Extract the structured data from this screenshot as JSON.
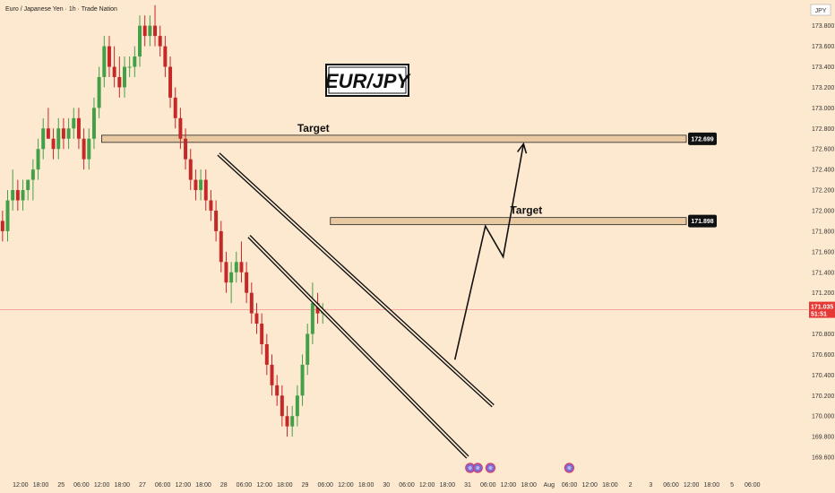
{
  "header": {
    "symbol_line": "Euro / Japanese Yen · 1h · Trade Nation",
    "currency": "JPY"
  },
  "title_box": {
    "text": "EUR/JPY"
  },
  "colors": {
    "background": "#fde9cf",
    "bull": "#43a047",
    "bear": "#c62828",
    "zone_fill": "#e9c9a2",
    "line": "#111111",
    "price_tag": "#e53935",
    "last_price_line": "#f08f8f"
  },
  "chart_data": {
    "type": "candlestick",
    "ylim": [
      169.4,
      174.05
    ],
    "xlim": [
      0,
      159
    ],
    "y_ticks": [
      169.6,
      169.8,
      170.0,
      170.2,
      170.4,
      170.6,
      170.8,
      171.0,
      171.2,
      171.4,
      171.6,
      171.8,
      172.0,
      172.2,
      172.4,
      172.6,
      172.8,
      173.0,
      173.2,
      173.4,
      173.6,
      173.8
    ],
    "y_tick_labels": [
      "169.600",
      "169.800",
      "170.000",
      "170.200",
      "170.400",
      "170.600",
      "170.800",
      "171.000",
      "171.200",
      "171.400",
      "171.600",
      "171.800",
      "172.000",
      "172.200",
      "172.400",
      "172.600",
      "172.800",
      "173.000",
      "173.200",
      "173.400",
      "173.600",
      "173.800"
    ],
    "x_ticks": [
      {
        "x": 0,
        "label": "12:00"
      },
      {
        "x": 4,
        "label": "18:00"
      },
      {
        "x": 8,
        "label": "25"
      },
      {
        "x": 12,
        "label": "06:00"
      },
      {
        "x": 16,
        "label": "12:00"
      },
      {
        "x": 20,
        "label": "18:00"
      },
      {
        "x": 24,
        "label": "27"
      },
      {
        "x": 28,
        "label": "06:00"
      },
      {
        "x": 32,
        "label": "12:00"
      },
      {
        "x": 36,
        "label": "18:00"
      },
      {
        "x": 40,
        "label": "28"
      },
      {
        "x": 44,
        "label": "06:00"
      },
      {
        "x": 48,
        "label": "12:00"
      },
      {
        "x": 52,
        "label": "18:00"
      },
      {
        "x": 56,
        "label": "29"
      },
      {
        "x": 60,
        "label": "06:00"
      },
      {
        "x": 64,
        "label": "12:00"
      },
      {
        "x": 68,
        "label": "18:00"
      },
      {
        "x": 72,
        "label": "30"
      },
      {
        "x": 76,
        "label": "06:00"
      },
      {
        "x": 80,
        "label": "12:00"
      },
      {
        "x": 84,
        "label": "18:00"
      },
      {
        "x": 88,
        "label": "31"
      },
      {
        "x": 92,
        "label": "06:00"
      },
      {
        "x": 96,
        "label": "12:00"
      },
      {
        "x": 100,
        "label": "18:00"
      },
      {
        "x": 104,
        "label": "Aug"
      },
      {
        "x": 108,
        "label": "06:00"
      },
      {
        "x": 112,
        "label": "12:00"
      },
      {
        "x": 116,
        "label": "18:00"
      },
      {
        "x": 120,
        "label": "2"
      },
      {
        "x": 124,
        "label": "3"
      },
      {
        "x": 128,
        "label": "06:00"
      },
      {
        "x": 132,
        "label": "12:00"
      },
      {
        "x": 136,
        "label": "18:00"
      },
      {
        "x": 140,
        "label": "5"
      },
      {
        "x": 144,
        "label": "06:00"
      }
    ],
    "ohlc": [
      [
        171.9,
        172.0,
        171.7,
        171.8
      ],
      [
        171.8,
        172.2,
        171.7,
        172.1
      ],
      [
        172.1,
        172.4,
        172.0,
        172.2
      ],
      [
        172.2,
        172.3,
        172.0,
        172.1
      ],
      [
        172.1,
        172.3,
        172.0,
        172.2
      ],
      [
        172.2,
        172.3,
        172.1,
        172.3
      ],
      [
        172.3,
        172.5,
        172.1,
        172.4
      ],
      [
        172.4,
        172.7,
        172.3,
        172.6
      ],
      [
        172.6,
        172.9,
        172.5,
        172.8
      ],
      [
        172.8,
        173.0,
        172.7,
        172.7
      ],
      [
        172.7,
        172.8,
        172.5,
        172.6
      ],
      [
        172.6,
        172.9,
        172.5,
        172.8
      ],
      [
        172.8,
        172.9,
        172.6,
        172.7
      ],
      [
        172.7,
        172.9,
        172.6,
        172.8
      ],
      [
        172.8,
        173.0,
        172.7,
        172.9
      ],
      [
        172.9,
        173.0,
        172.6,
        172.7
      ],
      [
        172.7,
        172.8,
        172.4,
        172.5
      ],
      [
        172.5,
        172.8,
        172.4,
        172.7
      ],
      [
        172.7,
        173.1,
        172.6,
        173.0
      ],
      [
        173.0,
        173.4,
        172.9,
        173.3
      ],
      [
        173.3,
        173.7,
        173.2,
        173.6
      ],
      [
        173.6,
        173.7,
        173.3,
        173.4
      ],
      [
        173.4,
        173.6,
        173.2,
        173.3
      ],
      [
        173.3,
        173.5,
        173.1,
        173.2
      ],
      [
        173.2,
        173.5,
        173.1,
        173.4
      ],
      [
        173.4,
        173.5,
        173.3,
        173.4
      ],
      [
        173.4,
        173.6,
        173.3,
        173.5
      ],
      [
        173.5,
        173.9,
        173.4,
        173.8
      ],
      [
        173.8,
        173.9,
        173.6,
        173.7
      ],
      [
        173.7,
        173.9,
        173.6,
        173.8
      ],
      [
        173.8,
        174.0,
        173.6,
        173.7
      ],
      [
        173.7,
        173.8,
        173.5,
        173.6
      ],
      [
        173.6,
        173.7,
        173.3,
        173.4
      ],
      [
        173.4,
        173.5,
        173.0,
        173.1
      ],
      [
        173.1,
        173.2,
        172.8,
        172.9
      ],
      [
        172.9,
        173.0,
        172.6,
        172.7
      ],
      [
        172.7,
        172.8,
        172.4,
        172.5
      ],
      [
        172.5,
        172.6,
        172.2,
        172.3
      ],
      [
        172.3,
        172.4,
        172.1,
        172.2
      ],
      [
        172.2,
        172.4,
        172.1,
        172.3
      ],
      [
        172.3,
        172.4,
        172.0,
        172.1
      ],
      [
        172.1,
        172.2,
        171.9,
        172.0
      ],
      [
        172.0,
        172.1,
        171.7,
        171.8
      ],
      [
        171.8,
        171.9,
        171.4,
        171.5
      ],
      [
        171.5,
        171.6,
        171.2,
        171.3
      ],
      [
        171.3,
        171.5,
        171.1,
        171.4
      ],
      [
        171.4,
        171.6,
        171.3,
        171.5
      ],
      [
        171.5,
        171.7,
        171.3,
        171.4
      ],
      [
        171.4,
        171.5,
        171.1,
        171.2
      ],
      [
        171.2,
        171.3,
        170.9,
        171.0
      ],
      [
        171.0,
        171.1,
        170.8,
        170.9
      ],
      [
        170.9,
        171.0,
        170.6,
        170.7
      ],
      [
        170.7,
        170.8,
        170.4,
        170.5
      ],
      [
        170.5,
        170.6,
        170.2,
        170.3
      ],
      [
        170.3,
        170.4,
        170.1,
        170.2
      ],
      [
        170.2,
        170.3,
        169.9,
        170.0
      ],
      [
        170.0,
        170.1,
        169.8,
        169.9
      ],
      [
        169.9,
        170.1,
        169.8,
        170.0
      ],
      [
        170.0,
        170.3,
        169.9,
        170.2
      ],
      [
        170.2,
        170.6,
        170.1,
        170.5
      ],
      [
        170.5,
        170.9,
        170.4,
        170.8
      ],
      [
        170.8,
        171.3,
        170.7,
        171.1
      ],
      [
        171.1,
        171.2,
        170.9,
        171.0
      ],
      [
        171.0,
        171.1,
        170.9,
        171.035
      ]
    ],
    "levels": [
      {
        "label": "Target",
        "price": 172.699,
        "tag": "172.699"
      },
      {
        "label": "Target",
        "price": 171.898,
        "tag": "171.898"
      }
    ],
    "last_price": {
      "price": 171.035,
      "label": "171.035",
      "timer": "51:51"
    }
  }
}
